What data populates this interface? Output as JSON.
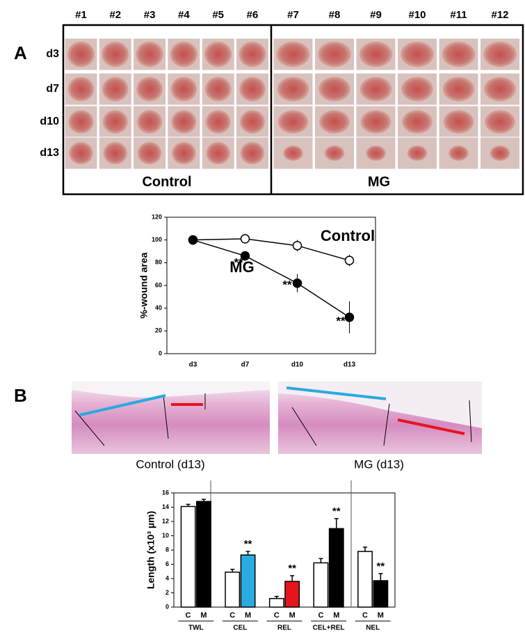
{
  "panel_a": {
    "label": "A",
    "columns": [
      "#1",
      "#2",
      "#3",
      "#4",
      "#5",
      "#6",
      "#7",
      "#8",
      "#9",
      "#10",
      "#11",
      "#12"
    ],
    "rows": [
      "d3",
      "d7",
      "d10",
      "d13"
    ],
    "groups": [
      "Control",
      "MG"
    ]
  },
  "panel_b": {
    "label": "B",
    "captions": [
      "Control (d13)",
      "MG (d13)"
    ]
  },
  "chart_data": [
    {
      "type": "line",
      "ylabel": "%-wound area",
      "categories": [
        "d3",
        "d7",
        "d10",
        "d13"
      ],
      "ylim": [
        0,
        120
      ],
      "yticks": [
        0,
        20,
        40,
        60,
        80,
        100,
        120
      ],
      "series": [
        {
          "name": "Control",
          "color": "#ffffff",
          "values": [
            100,
            101,
            95,
            82
          ],
          "errors": [
            0,
            2,
            5,
            5
          ]
        },
        {
          "name": "MG",
          "color": "#000000",
          "values": [
            100,
            86,
            62,
            32
          ],
          "errors": [
            0,
            4,
            8,
            14
          ]
        }
      ],
      "annotations": [
        "**",
        "**",
        "**"
      ]
    },
    {
      "type": "bar",
      "ylabel": "Length (x10³ µm)",
      "categories": [
        "TWL",
        "CEL",
        "REL",
        "CEL+REL",
        "NEL"
      ],
      "ylim": [
        0,
        16
      ],
      "yticks": [
        0,
        2,
        4,
        6,
        8,
        10,
        12,
        14,
        16
      ],
      "series": [
        {
          "name": "C",
          "colors": [
            "#ffffff",
            "#ffffff",
            "#ffffff",
            "#ffffff",
            "#ffffff"
          ],
          "values": [
            14.1,
            4.9,
            1.2,
            6.2,
            7.8
          ],
          "errors": [
            0.3,
            0.4,
            0.3,
            0.6,
            0.6
          ]
        },
        {
          "name": "M",
          "colors": [
            "#000000",
            "#29aae1",
            "#e8141b",
            "#000000",
            "#000000"
          ],
          "values": [
            14.8,
            7.3,
            3.6,
            11.0,
            3.7
          ],
          "errors": [
            0.3,
            0.5,
            0.8,
            1.4,
            1.0
          ]
        }
      ],
      "annotations": [
        "**",
        "**",
        "**",
        "**"
      ]
    }
  ]
}
